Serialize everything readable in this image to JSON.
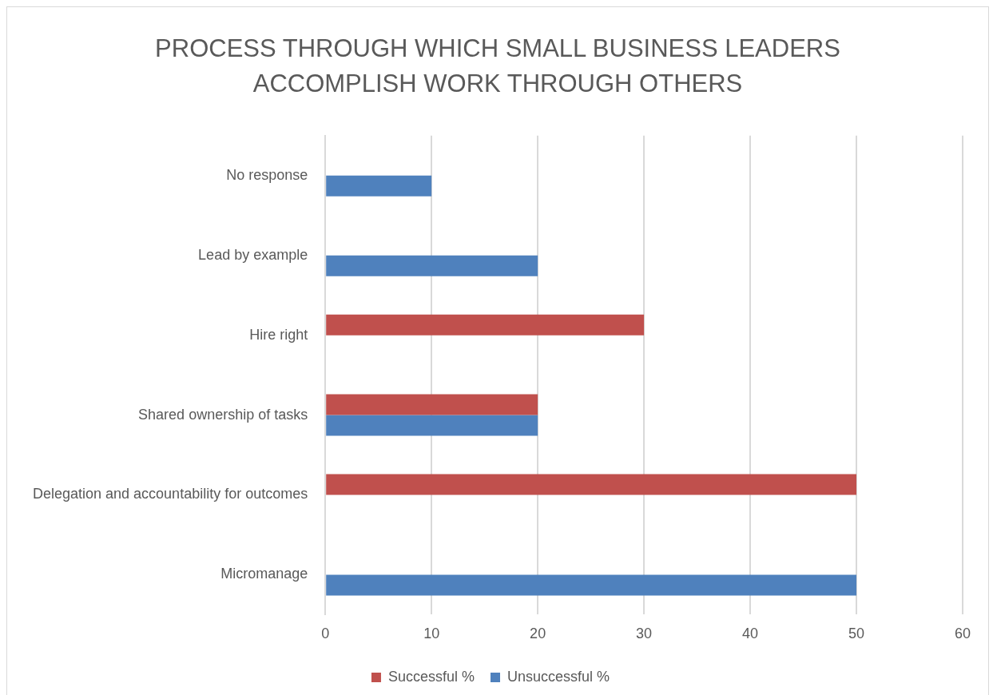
{
  "chart_data": {
    "type": "bar",
    "orientation": "horizontal",
    "title": "PROCESS THROUGH WHICH SMALL BUSINESS LEADERS ACCOMPLISH WORK THROUGH OTHERS",
    "categories": [
      "No response",
      "Lead by example",
      "Hire right",
      "Shared ownership of tasks",
      "Delegation and accountability for outcomes",
      "Micromanage"
    ],
    "series": [
      {
        "name": "Successful %",
        "color": "#c0504d",
        "values": [
          null,
          null,
          30,
          20,
          50,
          null
        ]
      },
      {
        "name": "Unsuccessful %",
        "color": "#4f81bd",
        "values": [
          10,
          20,
          null,
          20,
          null,
          50
        ]
      }
    ],
    "xlim": [
      0,
      60
    ],
    "xticks": [
      0,
      10,
      20,
      30,
      40,
      50,
      60
    ],
    "grid": "x",
    "legend": "bottom"
  }
}
